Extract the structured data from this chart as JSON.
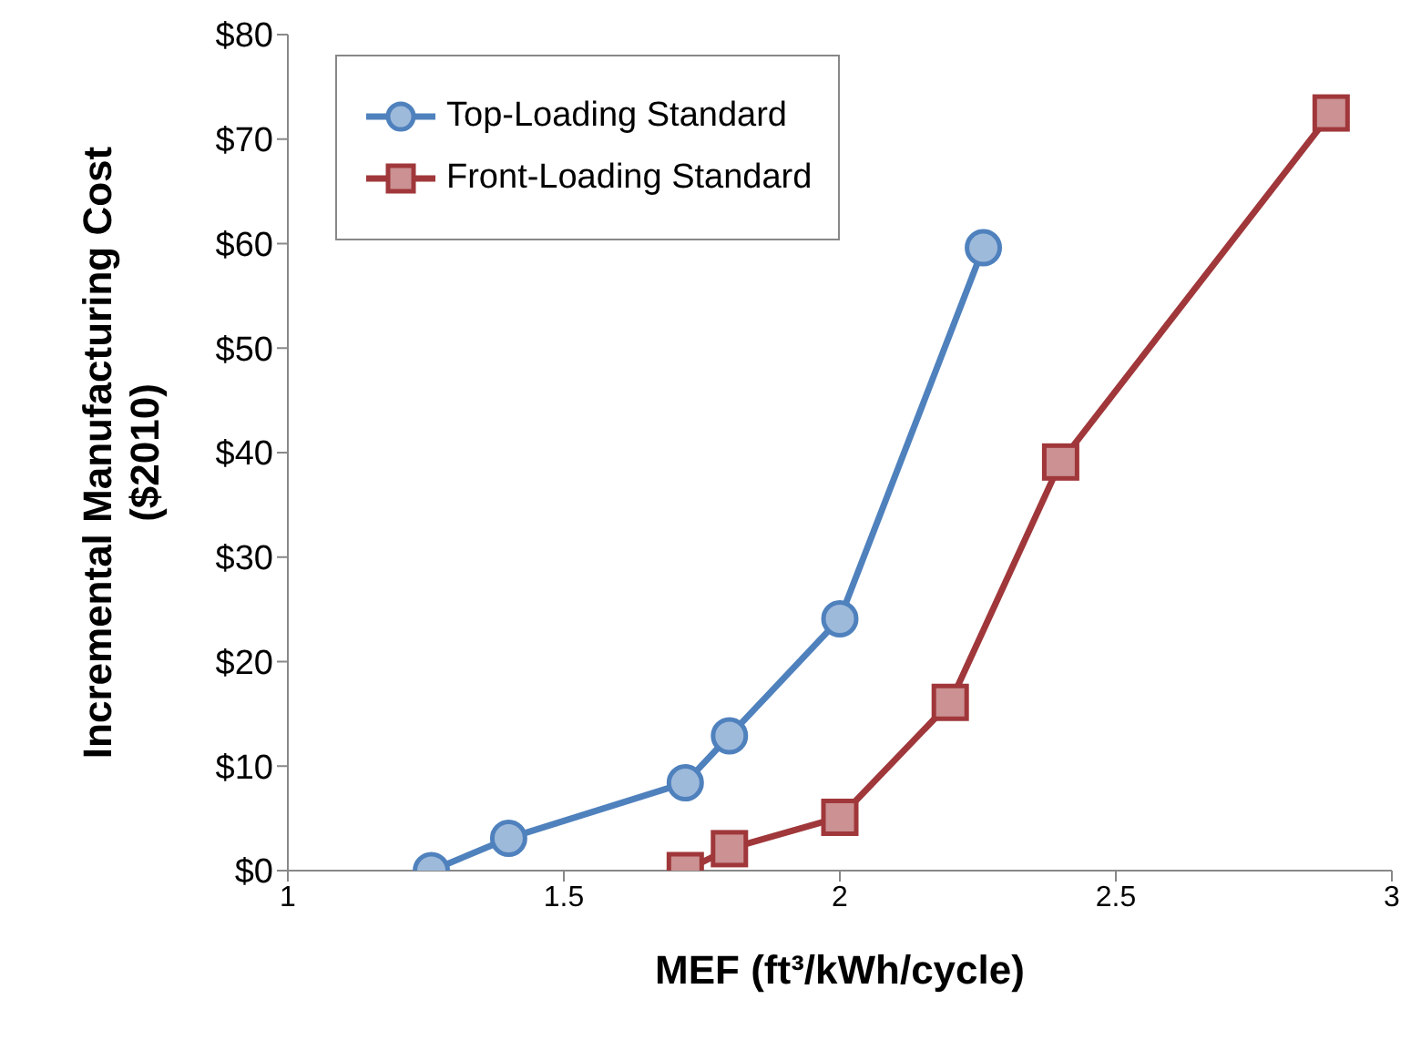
{
  "chart_data": {
    "type": "line",
    "xlabel": "MEF (ft³/kWh/cycle)",
    "ylabel": "Incremental Manufacturing Cost\n($2010)",
    "xlim": [
      1,
      3
    ],
    "xticks": [
      1,
      1.5,
      2,
      2.5,
      3
    ],
    "ylim": [
      0,
      80
    ],
    "yticks": [
      {
        "value": 0,
        "label": "$0"
      },
      {
        "value": 10,
        "label": "$10"
      },
      {
        "value": 20,
        "label": "$20"
      },
      {
        "value": 30,
        "label": "$30"
      },
      {
        "value": 40,
        "label": "$40"
      },
      {
        "value": 50,
        "label": "$50"
      },
      {
        "value": 60,
        "label": "$60"
      },
      {
        "value": 70,
        "label": "$70"
      },
      {
        "value": 80,
        "label": "$80"
      }
    ],
    "grid": false,
    "legend": "top left",
    "series": [
      {
        "name": "Top-Loading Standard",
        "color": "#4f81bd",
        "marker": "circle",
        "x": [
          1.26,
          1.4,
          1.72,
          1.8,
          2.0,
          2.26
        ],
        "values": [
          0,
          3.1,
          8.4,
          12.9,
          24.1,
          59.6
        ]
      },
      {
        "name": "Front-Loading Standard",
        "color": "#a0373a",
        "marker": "square",
        "x": [
          1.72,
          1.8,
          2.0,
          2.2,
          2.4,
          2.89
        ],
        "values": [
          0,
          2.1,
          5.1,
          16.1,
          39.1,
          72.5
        ]
      }
    ]
  }
}
